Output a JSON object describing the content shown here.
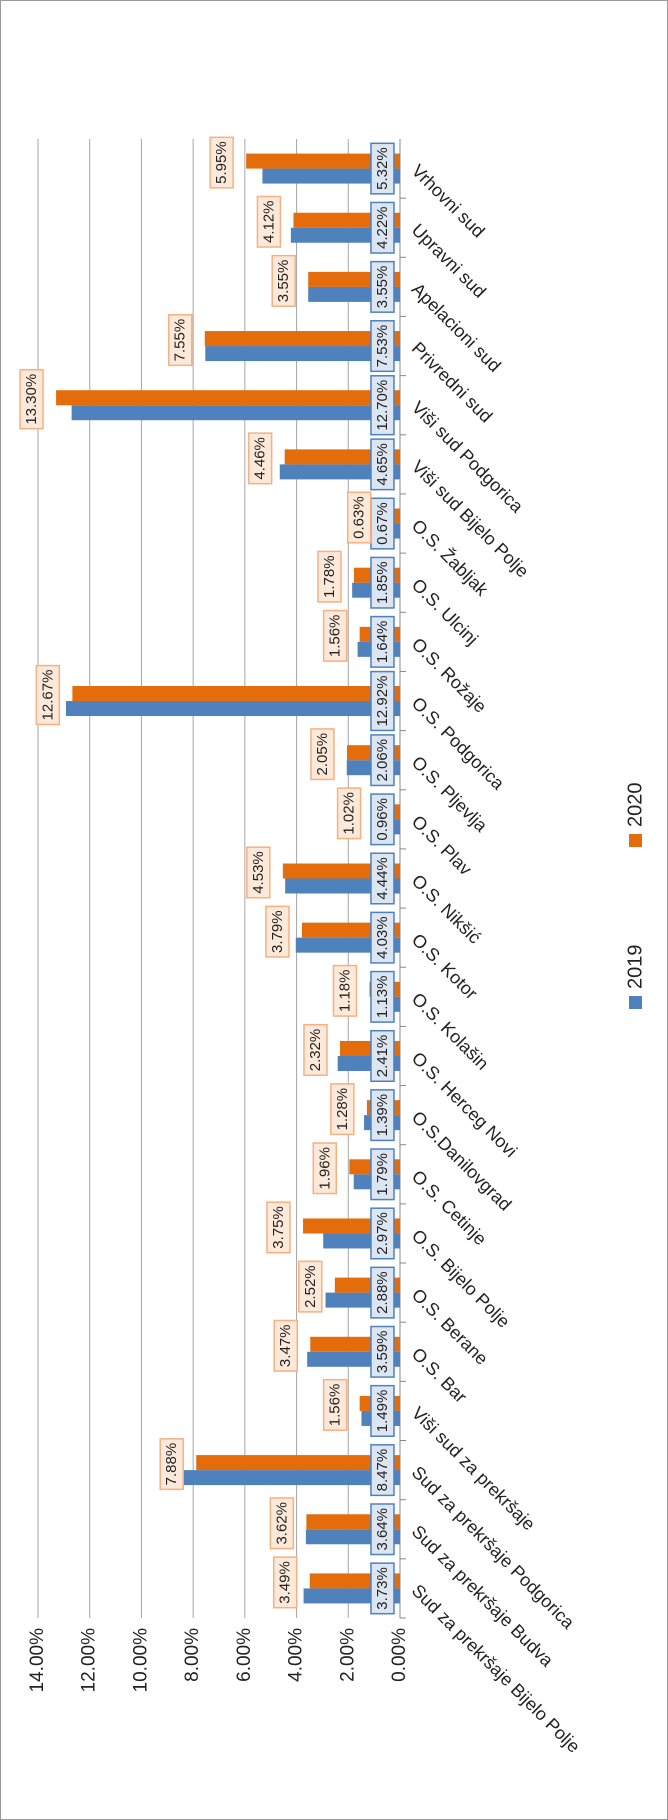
{
  "chart_data": {
    "type": "bar",
    "categories": [
      "Sud za prekršaje Bijelo Polje",
      "Sud za prekršaje Budva",
      "Sud za prekršaje Podgorica",
      "Viši sud za prekršaje",
      "O.S. Bar",
      "O.S. Berane",
      "O.S. Bijelo Polje",
      "O.S. Cetinje",
      "O.S.Danilovgrad",
      "O.S. Herceg Novi",
      "O.S. Kolašin",
      "O.S. Kotor",
      "O.S. Nikšić",
      "O.S. Plav",
      "O.S. Pljevlja",
      "O.S. Podgorica",
      "O.S. Rožaje",
      "O.S. Ulcinj",
      "O.S. Žabljak",
      "Viši sud Bijelo Polje",
      "Viši sud Podgorica",
      "Privredni sud",
      "Apelacioni sud",
      "Upravni sud",
      "Vrhovni sud"
    ],
    "series": [
      {
        "name": "2019",
        "color": "#4f81bd",
        "values": [
          3.73,
          3.64,
          8.47,
          1.49,
          3.59,
          2.88,
          2.97,
          1.79,
          1.39,
          2.41,
          1.13,
          4.03,
          4.44,
          0.96,
          2.06,
          12.92,
          1.64,
          1.85,
          0.67,
          4.65,
          12.7,
          7.53,
          3.55,
          4.22,
          5.32
        ],
        "value_labels": [
          "3.73%",
          "3.64%",
          "8.47%",
          "1.49%",
          "3.59%",
          "2.88%",
          "2.97%",
          "1.79%",
          "1.39%",
          "2.41%",
          "1.13%",
          "4.03%",
          "4.44%",
          "0.96%",
          "2.06%",
          "12.92%",
          "1.64%",
          "1.85%",
          "0.67%",
          "4.65%",
          "12.70%",
          "7.53%",
          "3.55%",
          "4.22%",
          "5.32%"
        ]
      },
      {
        "name": "2020",
        "color": "#e46c0a",
        "values": [
          3.49,
          3.62,
          7.88,
          1.56,
          3.47,
          2.52,
          3.75,
          1.96,
          1.28,
          2.32,
          1.18,
          3.79,
          4.53,
          1.02,
          2.05,
          12.67,
          1.56,
          1.78,
          0.63,
          4.46,
          13.3,
          7.55,
          3.55,
          4.12,
          5.95
        ],
        "value_labels": [
          "3.49%",
          "3.62%",
          "7.88%",
          "1.56%",
          "3.47%",
          "2.52%",
          "3.75%",
          "1.96%",
          "1.28%",
          "2.32%",
          "1.18%",
          "3.79%",
          "4.53%",
          "1.02%",
          "2.05%",
          "12.67%",
          "1.56%",
          "1.78%",
          "0.63%",
          "4.46%",
          "13.30%",
          "7.55%",
          "3.55%",
          "4.12%",
          "5.95%"
        ]
      }
    ],
    "ylim": [
      0,
      14
    ],
    "yticks": [
      {
        "value": 0,
        "label": "0.00%"
      },
      {
        "value": 2,
        "label": "2.00%"
      },
      {
        "value": 4,
        "label": "4.00%"
      },
      {
        "value": 6,
        "label": "6.00%"
      },
      {
        "value": 8,
        "label": "8.00%"
      },
      {
        "value": 10,
        "label": "10.00%"
      },
      {
        "value": 12,
        "label": "12.00%"
      },
      {
        "value": 14,
        "label": "14.00%"
      }
    ],
    "grid": true,
    "legend": "bottom"
  }
}
